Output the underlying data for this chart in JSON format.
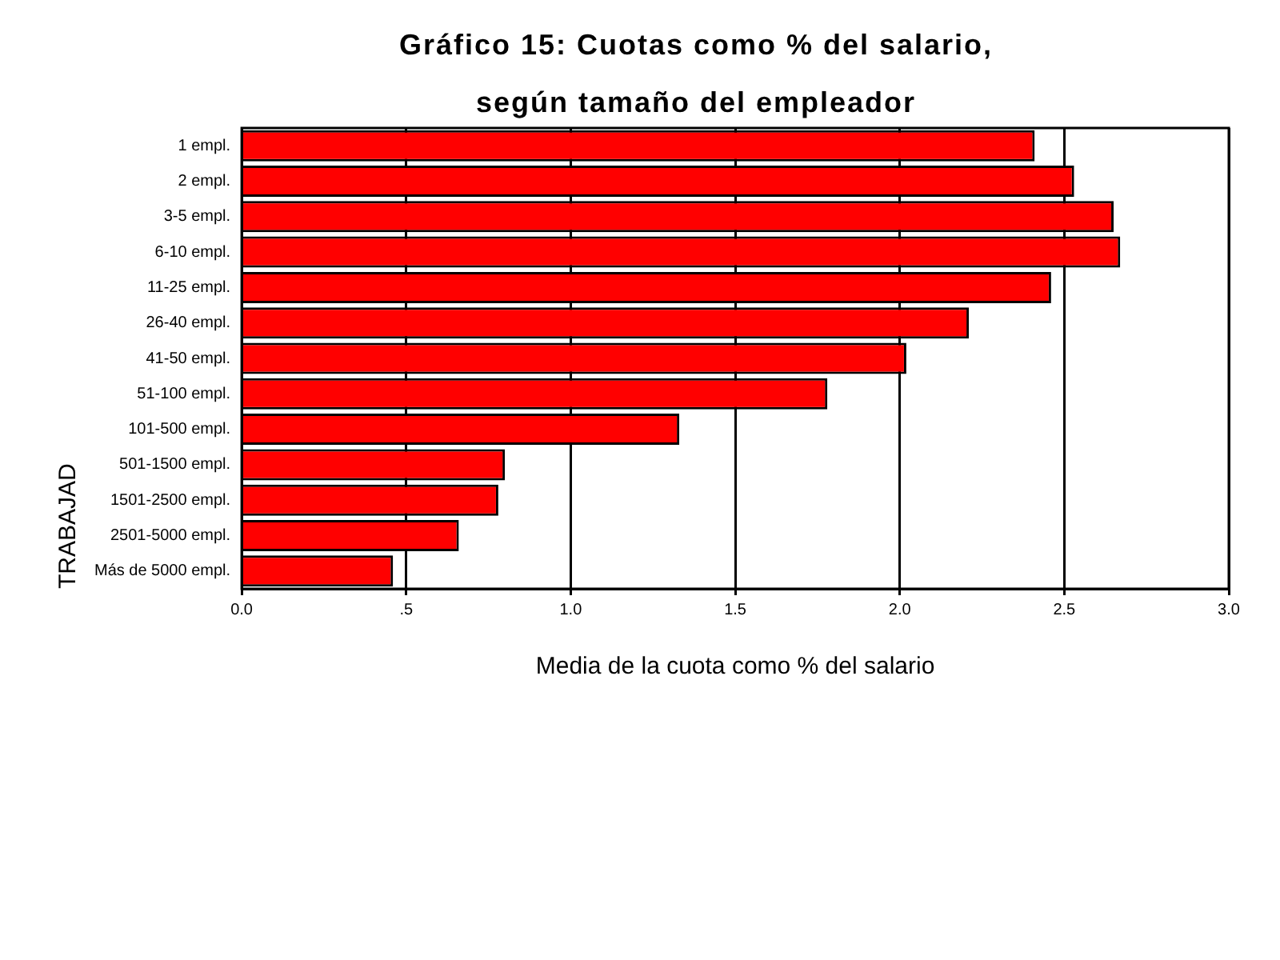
{
  "chart_data": {
    "type": "bar",
    "orientation": "horizontal",
    "title": "Gráfico 15: Cuotas como % del salario, según tamaño del empleador",
    "xlabel": "Media de la cuota como % del salario",
    "ylabel": "TRABAJAD",
    "categories": [
      "1 empl.",
      "2 empl.",
      "3-5 empl.",
      "6-10 empl.",
      "11-25 empl.",
      "26-40 empl.",
      "41-50 empl.",
      "51-100 empl.",
      "101-500 empl.",
      "501-1500 empl.",
      "1501-2500 empl.",
      "2501-5000 empl.",
      "Más de 5000 empl."
    ],
    "values": [
      2.41,
      2.53,
      2.65,
      2.67,
      2.46,
      2.21,
      2.02,
      1.78,
      1.33,
      0.8,
      0.78,
      0.66,
      0.46
    ],
    "color": "#ff0000",
    "xlim": [
      0,
      3
    ],
    "xticks": [
      {
        "value": 0,
        "label": "0.0"
      },
      {
        "value": 0.5,
        "label": ".5"
      },
      {
        "value": 1,
        "label": "1.0"
      },
      {
        "value": 1.5,
        "label": "1.5"
      },
      {
        "value": 2,
        "label": "2.0"
      },
      {
        "value": 2.5,
        "label": "2.5"
      },
      {
        "value": 3,
        "label": "3.0"
      }
    ],
    "grid": "x",
    "legend": false
  }
}
